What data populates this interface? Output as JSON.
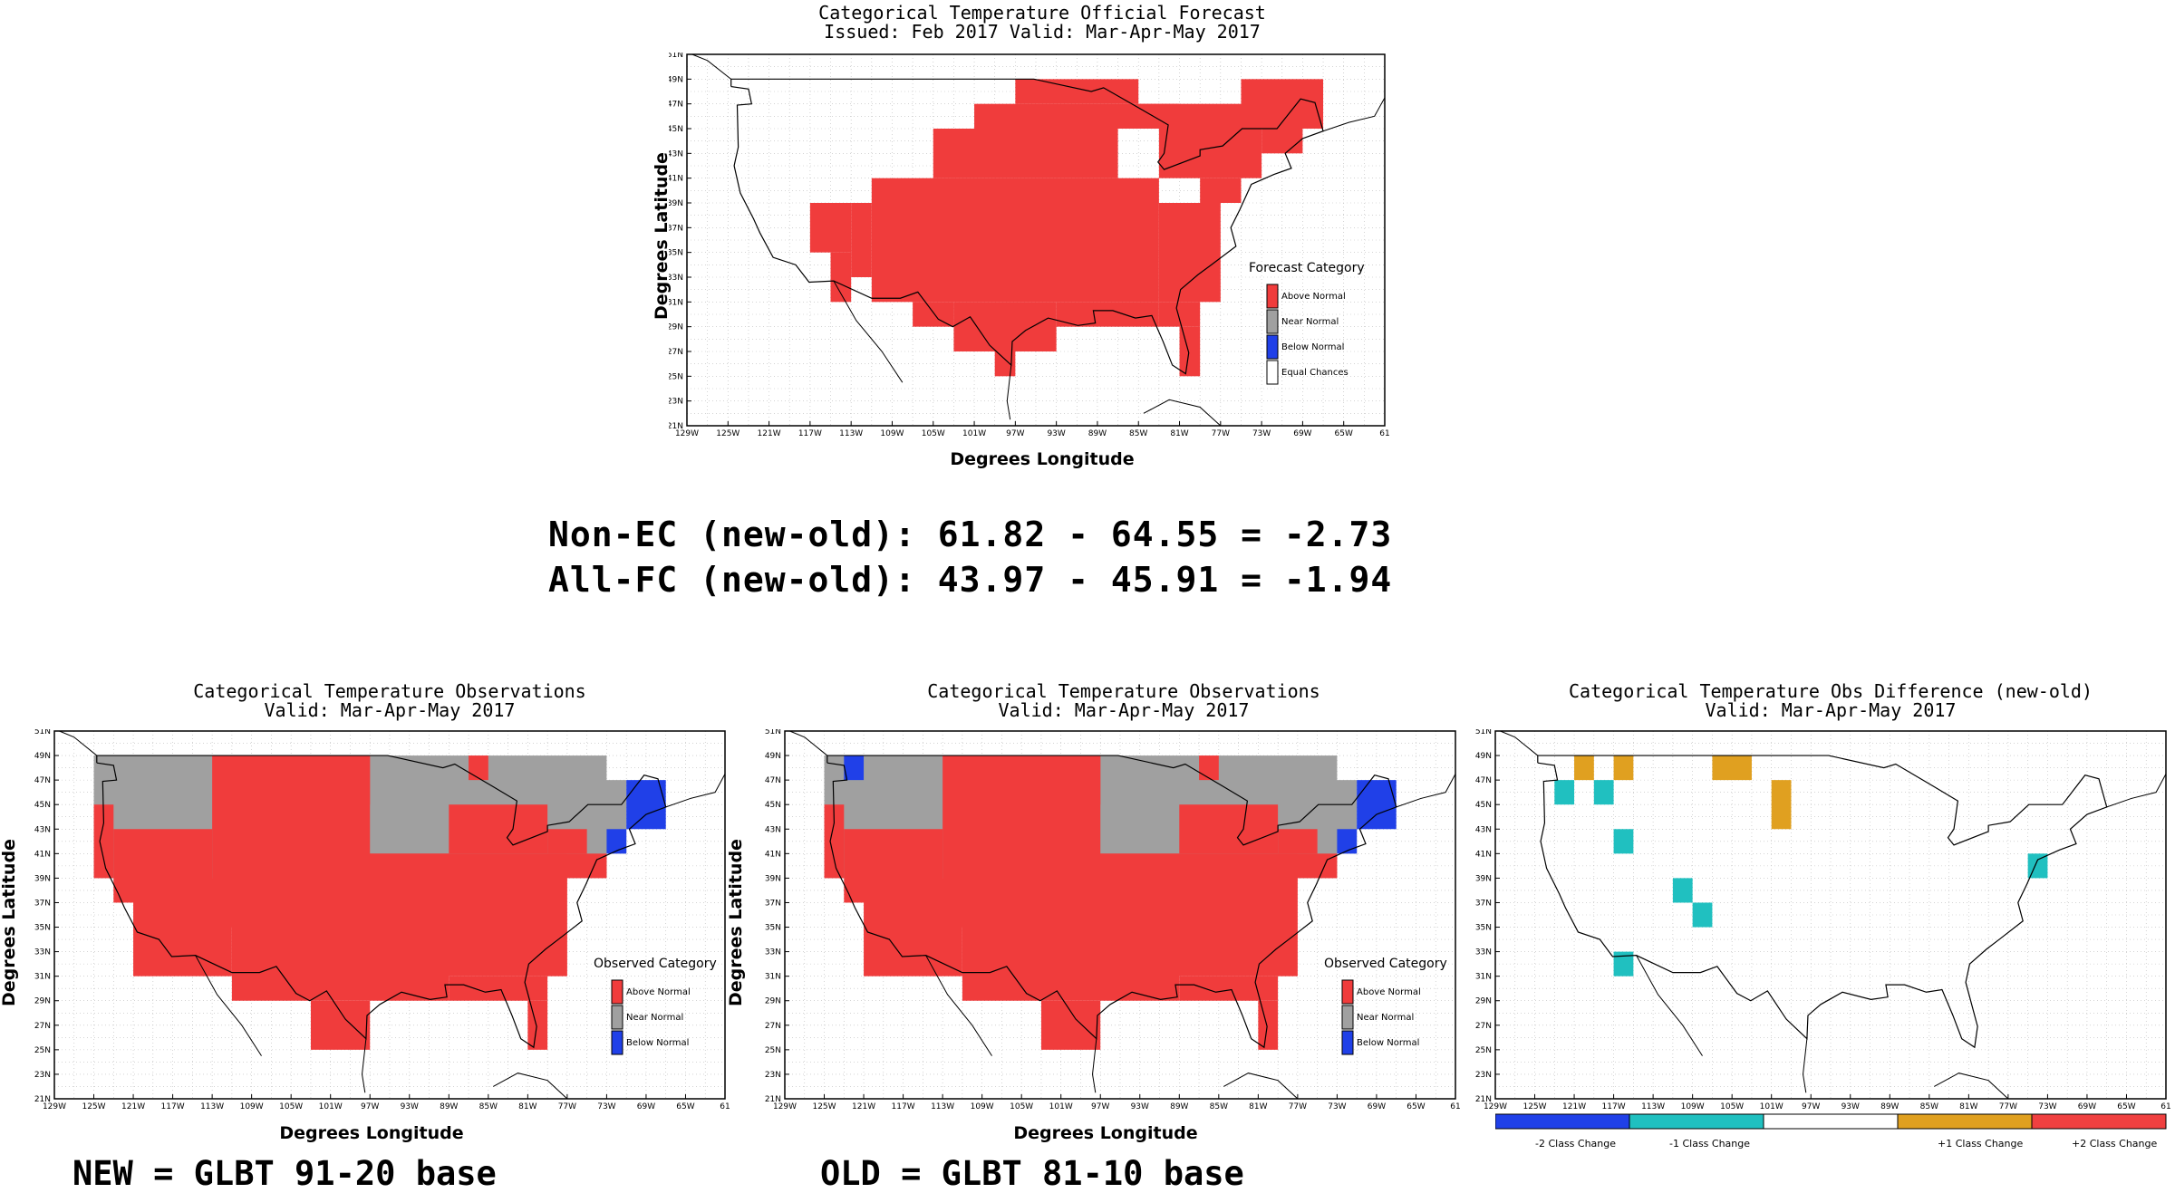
{
  "top": {
    "title": "Categorical Temperature Official Forecast",
    "subtitle": "Issued: Feb 2017 Valid: Mar-Apr-May 2017",
    "ylabel": "Degrees Latitude",
    "xlabel": "Degrees Longitude",
    "legend_title": "Forecast Category",
    "legend": [
      "Above Normal",
      "Near Normal",
      "Below Normal",
      "Equal Chances"
    ]
  },
  "stats": {
    "line1": "Non-EC (new-old): 61.82 - 64.55 = -2.73",
    "line2": "All-FC (new-old): 43.97 - 45.91 = -1.94"
  },
  "obs_new": {
    "title": "Categorical Temperature Observations",
    "subtitle": "Valid: Mar-Apr-May 2017",
    "ylabel": "Degrees Latitude",
    "xlabel": "Degrees Longitude",
    "legend_title": "Observed Category",
    "legend": [
      "Above Normal",
      "Near Normal",
      "Below Normal"
    ],
    "footer": "NEW = GLBT 91-20 base"
  },
  "obs_old": {
    "title": "Categorical Temperature Observations",
    "subtitle": "Valid: Mar-Apr-May 2017",
    "ylabel": "Degrees Latitude",
    "xlabel": "Degrees Longitude",
    "legend_title": "Observed Category",
    "legend": [
      "Above Normal",
      "Near Normal",
      "Below Normal"
    ],
    "footer": "OLD = GLBT 81-10 base"
  },
  "diff": {
    "title": "Categorical Temperature Obs Difference (new-old)",
    "subtitle": "Valid: Mar-Apr-May 2017",
    "legend": [
      "-2 Class Change",
      "-1 Class Change",
      "+1 Class Change",
      "+2 Class Change"
    ],
    "legend_colors": [
      "#2040e8",
      "#20c0c0",
      "#ffffff",
      "#e0a020",
      "#f04040"
    ]
  },
  "lat_ticks": [
    "51N",
    "49N",
    "47N",
    "45N",
    "43N",
    "41N",
    "39N",
    "37N",
    "35N",
    "33N",
    "31N",
    "29N",
    "27N",
    "25N",
    "23N",
    "21N"
  ],
  "lon_ticks": [
    "129W",
    "125W",
    "121W",
    "117W",
    "113W",
    "109W",
    "105W",
    "101W",
    "97W",
    "93W",
    "89W",
    "85W",
    "81W",
    "77W",
    "73W",
    "69W",
    "65W",
    "61"
  ],
  "colors": {
    "above": "#f03c3c",
    "near": "#a0a0a0",
    "below": "#2040e8",
    "ec": "#ffffff",
    "minus1": "#20c0c0",
    "plus1": "#e0a020"
  }
}
